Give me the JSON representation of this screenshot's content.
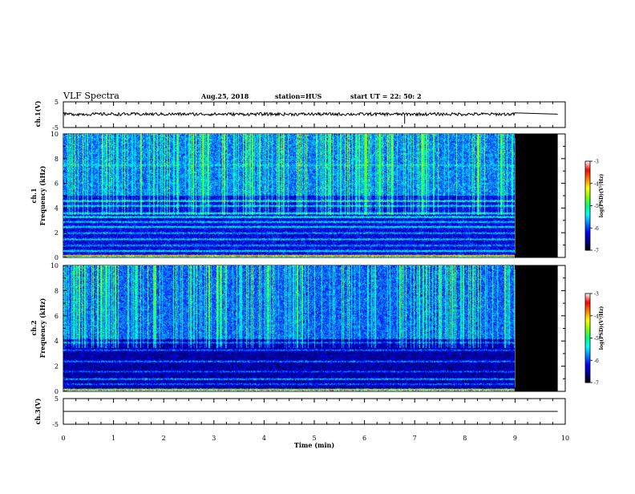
{
  "header": {
    "title": "VLF Spectra",
    "date": "Aug.25, 2018",
    "station": "station=HUS",
    "start": "start  UT =   22: 50: 2"
  },
  "chart_data": {
    "type": "heatmap",
    "time_axis": {
      "label": "Time  (min)",
      "range": [
        0,
        10
      ],
      "ticks": [
        "0",
        "1",
        "2",
        "3",
        "4",
        "5",
        "6",
        "7",
        "8",
        "9",
        "10"
      ],
      "data_end_min": 9.0
    },
    "panels": [
      {
        "id": "ch1_waveform",
        "type": "line",
        "ylabel": "ch.1(V)",
        "ylim": [
          -5,
          5
        ],
        "ticks": [
          "5",
          "-5"
        ],
        "series": [
          {
            "x": [
              0,
              1,
              2,
              3,
              4,
              5,
              6,
              6.8,
              7,
              8,
              9,
              9.85
            ],
            "y": [
              0.2,
              0.2,
              0.2,
              0.2,
              0.2,
              0.2,
              0.2,
              0.2,
              0.2,
              0.2,
              0.2,
              0.2
            ]
          }
        ]
      },
      {
        "id": "ch1_spectrogram",
        "type": "heatmap",
        "ylabel": "ch.1",
        "ylabel2": "Frequency  (kHz)",
        "ylim": [
          0,
          10
        ],
        "ticks": [
          "0",
          "2",
          "4",
          "6",
          "8",
          "10"
        ],
        "background_log_psd": -6.2,
        "bands_khz": [
          {
            "f": 0.15,
            "level": -3.2
          },
          {
            "f": 0.55,
            "level": -5.2
          },
          {
            "f": 1.0,
            "level": -5.6
          },
          {
            "f": 1.5,
            "level": -5.4
          },
          {
            "f": 2.0,
            "level": -5.6
          },
          {
            "f": 2.5,
            "level": -5.2
          },
          {
            "f": 2.9,
            "level": -5.4
          },
          {
            "f": 3.3,
            "level": -5.0
          },
          {
            "f": 3.6,
            "level": -5.1
          },
          {
            "f": 4.2,
            "level": -5.3
          },
          {
            "f": 4.6,
            "level": -5.1
          },
          {
            "f": 7.5,
            "level": -5.5
          }
        ],
        "colorbar": {
          "label": "log(PSD)(V²/Hz)",
          "range": [
            -7,
            -3
          ],
          "ticks": [
            "-3",
            "-4",
            "-5",
            "-6",
            "-7"
          ]
        }
      },
      {
        "id": "ch2_spectrogram",
        "type": "heatmap",
        "ylabel": "ch.2",
        "ylabel2": "Frequency  (kHz)",
        "ylim": [
          0,
          10
        ],
        "ticks": [
          "0",
          "2",
          "4",
          "6",
          "8",
          "10"
        ],
        "background_log_psd": -6.4,
        "bands_khz": [
          {
            "f": 0.15,
            "level": -3.2
          },
          {
            "f": 0.6,
            "level": -5.8
          },
          {
            "f": 1.0,
            "level": -5.5
          },
          {
            "f": 1.6,
            "level": -5.9
          },
          {
            "f": 2.4,
            "level": -5.7
          },
          {
            "f": 3.3,
            "level": -5.8
          },
          {
            "f": 3.9,
            "level": -5.8
          }
        ],
        "colorbar": {
          "label": "log(PSD)(V²/Hz)",
          "range": [
            -7,
            -3
          ],
          "ticks": [
            "-3",
            "-4",
            "-5",
            "-6",
            "-7"
          ]
        }
      },
      {
        "id": "ch3_waveform",
        "type": "line",
        "ylabel": "ch.3(V)",
        "ylim": [
          -5,
          5
        ],
        "ticks": [
          "5",
          "-5"
        ],
        "series": [
          {
            "x": [
              0,
              9.85
            ],
            "y": [
              0,
              0
            ]
          }
        ]
      }
    ],
    "colormap": [
      "#000000",
      "#00008c",
      "#0000ff",
      "#0080ff",
      "#00ffff",
      "#00ff80",
      "#80ff00",
      "#ffff00",
      "#ff8000",
      "#ff0000",
      "#ffffff"
    ]
  }
}
